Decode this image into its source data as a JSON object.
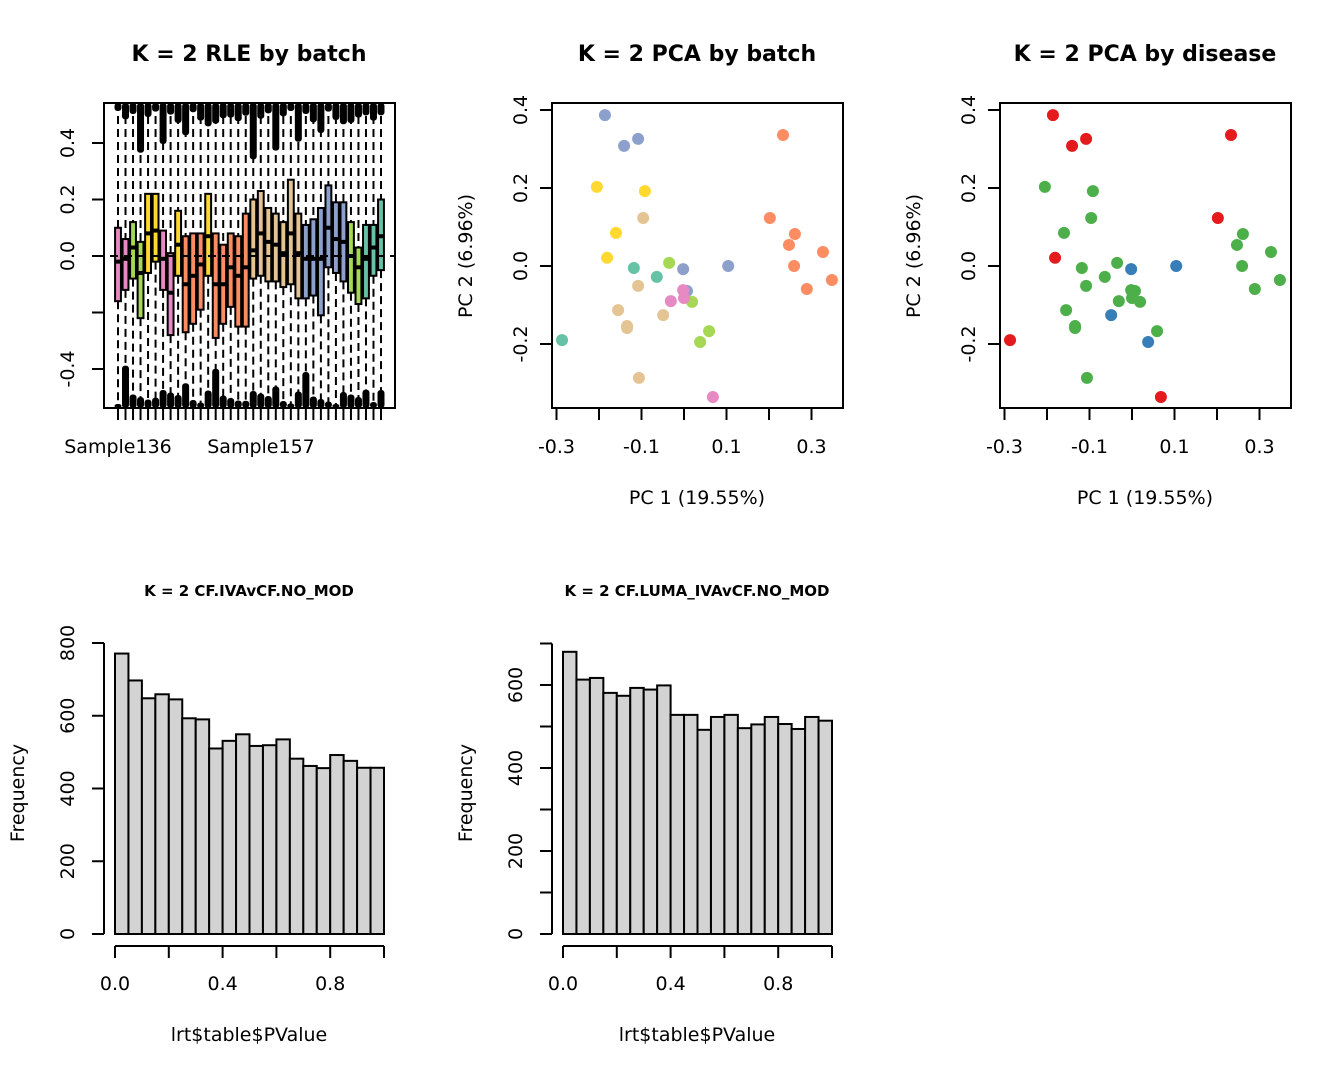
{
  "chart_data": [
    {
      "id": "rle",
      "type": "boxplot",
      "title": "K = 2 RLE by batch",
      "xlabel": "",
      "ylabel": "",
      "ylim": [
        -0.53,
        0.53
      ],
      "yticks": [
        -0.4,
        -0.2,
        0.0,
        0.2,
        0.4
      ],
      "ytick_labels": [
        "-0.4",
        "",
        "0.0",
        "0.2",
        "0.4"
      ],
      "xtick_labels_shown": [
        "Sample136",
        "Sample157"
      ],
      "reference_line": 0,
      "colors": {
        "pink": "#E78AC3",
        "green": "#A6D854",
        "yellow": "#FFD92F",
        "orange": "#FC8D62",
        "tan": "#E5C494",
        "blue": "#8DA0CB",
        "teal": "#66C2A5"
      },
      "boxes": [
        {
          "color": "pink",
          "q1": -0.16,
          "median": -0.02,
          "q3": 0.1
        },
        {
          "color": "pink",
          "q1": -0.12,
          "median": -0.01,
          "q3": 0.06
        },
        {
          "color": "green",
          "q1": -0.08,
          "median": 0.03,
          "q3": 0.12
        },
        {
          "color": "green",
          "q1": -0.22,
          "median": -0.06,
          "q3": 0.05
        },
        {
          "color": "yellow",
          "q1": -0.06,
          "median": 0.08,
          "q3": 0.22
        },
        {
          "color": "yellow",
          "q1": -0.02,
          "median": 0.09,
          "q3": 0.22
        },
        {
          "color": "pink",
          "q1": -0.12,
          "median": -0.01,
          "q3": 0.09
        },
        {
          "color": "pink",
          "q1": -0.28,
          "median": -0.13,
          "q3": 0.01
        },
        {
          "color": "yellow",
          "q1": -0.07,
          "median": 0.04,
          "q3": 0.16
        },
        {
          "color": "orange",
          "q1": -0.27,
          "median": -0.1,
          "q3": 0.07
        },
        {
          "color": "orange",
          "q1": -0.24,
          "median": -0.07,
          "q3": 0.08
        },
        {
          "color": "orange",
          "q1": -0.19,
          "median": -0.03,
          "q3": 0.08
        },
        {
          "color": "yellow",
          "q1": -0.07,
          "median": 0.07,
          "q3": 0.22
        },
        {
          "color": "orange",
          "q1": -0.29,
          "median": -0.1,
          "q3": 0.08
        },
        {
          "color": "orange",
          "q1": -0.24,
          "median": -0.1,
          "q3": 0.04
        },
        {
          "color": "orange",
          "q1": -0.18,
          "median": -0.04,
          "q3": 0.08
        },
        {
          "color": "orange",
          "q1": -0.25,
          "median": -0.07,
          "q3": 0.07
        },
        {
          "color": "orange",
          "q1": -0.25,
          "median": -0.04,
          "q3": 0.15
        },
        {
          "color": "tan",
          "q1": -0.08,
          "median": 0.02,
          "q3": 0.2
        },
        {
          "color": "tan",
          "q1": -0.07,
          "median": 0.08,
          "q3": 0.23
        },
        {
          "color": "tan",
          "q1": -0.09,
          "median": 0.05,
          "q3": 0.17
        },
        {
          "color": "tan",
          "q1": -0.09,
          "median": 0.04,
          "q3": 0.15
        },
        {
          "color": "tan",
          "q1": -0.11,
          "median": 0.01,
          "q3": 0.12
        },
        {
          "color": "tan",
          "q1": -0.1,
          "median": 0.08,
          "q3": 0.27
        },
        {
          "color": "tan",
          "q1": -0.15,
          "median": 0.01,
          "q3": 0.15
        },
        {
          "color": "blue",
          "q1": -0.15,
          "median": -0.01,
          "q3": 0.11
        },
        {
          "color": "blue",
          "q1": -0.14,
          "median": -0.01,
          "q3": 0.13
        },
        {
          "color": "blue",
          "q1": -0.21,
          "median": -0.01,
          "q3": 0.17
        },
        {
          "color": "blue",
          "q1": -0.04,
          "median": 0.1,
          "q3": 0.25
        },
        {
          "color": "blue",
          "q1": -0.06,
          "median": 0.06,
          "q3": 0.19
        },
        {
          "color": "blue",
          "q1": -0.09,
          "median": 0.05,
          "q3": 0.19
        },
        {
          "color": "green",
          "q1": -0.13,
          "median": 0.0,
          "q3": 0.12
        },
        {
          "color": "green",
          "q1": -0.17,
          "median": -0.04,
          "q3": 0.03
        },
        {
          "color": "teal",
          "q1": -0.15,
          "median": -0.01,
          "q3": 0.11
        },
        {
          "color": "teal",
          "q1": -0.07,
          "median": 0.03,
          "q3": 0.11
        },
        {
          "color": "teal",
          "q1": -0.05,
          "median": 0.07,
          "q3": 0.2
        }
      ]
    },
    {
      "id": "pca-batch",
      "type": "scatter",
      "title": "K = 2 PCA by batch",
      "xlabel": "PC 1 (19.55%)",
      "ylabel": "PC 2 (6.96%)",
      "xlim": [
        -0.31,
        0.37
      ],
      "ylim": [
        -0.36,
        0.41
      ],
      "xticks": [
        -0.3,
        -0.2,
        -0.1,
        0.0,
        0.1,
        0.2,
        0.3
      ],
      "xtick_labels": [
        "-0.3",
        "",
        "-0.1",
        "",
        "0.1",
        "",
        "0.3"
      ],
      "yticks": [
        -0.2,
        0.0,
        0.2,
        0.4
      ],
      "ytick_labels": [
        "-0.2",
        "0.0",
        "0.2",
        "0.4"
      ],
      "colors": {
        "pink": "#E78AC3",
        "green": "#A6D854",
        "yellow": "#FFD92F",
        "orange": "#FC8D62",
        "tan": "#E5C494",
        "blue": "#8DA0CB",
        "teal": "#66C2A5"
      },
      "points": [
        {
          "x": -0.186,
          "y": 0.387,
          "group": "blue"
        },
        {
          "x": -0.141,
          "y": 0.308,
          "group": "blue"
        },
        {
          "x": -0.108,
          "y": 0.326,
          "group": "blue"
        },
        {
          "x": -0.002,
          "y": -0.008,
          "group": "blue"
        },
        {
          "x": 0.104,
          "y": 0.0,
          "group": "blue"
        },
        {
          "x": 0.007,
          "y": -0.064,
          "group": "blue"
        },
        {
          "x": -0.205,
          "y": 0.203,
          "group": "yellow"
        },
        {
          "x": -0.092,
          "y": 0.192,
          "group": "yellow"
        },
        {
          "x": -0.16,
          "y": 0.085,
          "group": "yellow"
        },
        {
          "x": -0.181,
          "y": 0.021,
          "group": "yellow"
        },
        {
          "x": -0.096,
          "y": 0.123,
          "group": "tan"
        },
        {
          "x": -0.108,
          "y": -0.051,
          "group": "tan"
        },
        {
          "x": -0.155,
          "y": -0.113,
          "group": "tan"
        },
        {
          "x": -0.049,
          "y": -0.126,
          "group": "tan"
        },
        {
          "x": -0.134,
          "y": -0.154,
          "group": "tan"
        },
        {
          "x": -0.134,
          "y": -0.159,
          "group": "tan"
        },
        {
          "x": -0.106,
          "y": -0.287,
          "group": "tan"
        },
        {
          "x": -0.118,
          "y": -0.005,
          "group": "teal"
        },
        {
          "x": -0.064,
          "y": -0.028,
          "group": "teal"
        },
        {
          "x": -0.287,
          "y": -0.19,
          "group": "teal"
        },
        {
          "x": -0.035,
          "y": 0.008,
          "group": "green"
        },
        {
          "x": 0.019,
          "y": -0.092,
          "group": "green"
        },
        {
          "x": 0.059,
          "y": -0.167,
          "group": "green"
        },
        {
          "x": 0.038,
          "y": -0.195,
          "group": "green"
        },
        {
          "x": -0.002,
          "y": -0.062,
          "group": "pink"
        },
        {
          "x": 0.0,
          "y": -0.082,
          "group": "pink"
        },
        {
          "x": -0.031,
          "y": -0.09,
          "group": "pink"
        },
        {
          "x": 0.068,
          "y": -0.336,
          "group": "pink"
        },
        {
          "x": 0.233,
          "y": 0.336,
          "group": "orange"
        },
        {
          "x": 0.202,
          "y": 0.123,
          "group": "orange"
        },
        {
          "x": 0.261,
          "y": 0.082,
          "group": "orange"
        },
        {
          "x": 0.247,
          "y": 0.054,
          "group": "orange"
        },
        {
          "x": 0.327,
          "y": 0.036,
          "group": "orange"
        },
        {
          "x": 0.259,
          "y": 0.0,
          "group": "orange"
        },
        {
          "x": 0.348,
          "y": -0.036,
          "group": "orange"
        },
        {
          "x": 0.289,
          "y": -0.059,
          "group": "orange"
        }
      ]
    },
    {
      "id": "pca-disease",
      "type": "scatter",
      "title": "K = 2 PCA by disease",
      "xlabel": "PC 1 (19.55%)",
      "ylabel": "PC 2 (6.96%)",
      "xlim": [
        -0.31,
        0.37
      ],
      "ylim": [
        -0.36,
        0.41
      ],
      "xticks": [
        -0.3,
        -0.2,
        -0.1,
        0.0,
        0.1,
        0.2,
        0.3
      ],
      "xtick_labels": [
        "-0.3",
        "",
        "-0.1",
        "",
        "0.1",
        "",
        "0.3"
      ],
      "yticks": [
        -0.2,
        0.0,
        0.2,
        0.4
      ],
      "ytick_labels": [
        "-0.2",
        "0.0",
        "0.2",
        "0.4"
      ],
      "colors": {
        "red": "#E41A1C",
        "blue": "#377EB8",
        "green": "#4DAF4A"
      },
      "points": [
        {
          "x": -0.186,
          "y": 0.387,
          "group": "red"
        },
        {
          "x": -0.141,
          "y": 0.308,
          "group": "red"
        },
        {
          "x": -0.108,
          "y": 0.326,
          "group": "red"
        },
        {
          "x": -0.002,
          "y": -0.008,
          "group": "blue"
        },
        {
          "x": 0.104,
          "y": 0.0,
          "group": "blue"
        },
        {
          "x": 0.007,
          "y": -0.064,
          "group": "green"
        },
        {
          "x": -0.205,
          "y": 0.203,
          "group": "green"
        },
        {
          "x": -0.092,
          "y": 0.192,
          "group": "green"
        },
        {
          "x": -0.16,
          "y": 0.085,
          "group": "green"
        },
        {
          "x": -0.181,
          "y": 0.021,
          "group": "red"
        },
        {
          "x": -0.096,
          "y": 0.123,
          "group": "green"
        },
        {
          "x": -0.108,
          "y": -0.051,
          "group": "green"
        },
        {
          "x": -0.155,
          "y": -0.113,
          "group": "green"
        },
        {
          "x": -0.049,
          "y": -0.126,
          "group": "blue"
        },
        {
          "x": -0.134,
          "y": -0.154,
          "group": "green"
        },
        {
          "x": -0.134,
          "y": -0.159,
          "group": "green"
        },
        {
          "x": -0.106,
          "y": -0.287,
          "group": "green"
        },
        {
          "x": -0.118,
          "y": -0.005,
          "group": "green"
        },
        {
          "x": -0.064,
          "y": -0.028,
          "group": "green"
        },
        {
          "x": -0.287,
          "y": -0.19,
          "group": "red"
        },
        {
          "x": -0.035,
          "y": 0.008,
          "group": "green"
        },
        {
          "x": 0.019,
          "y": -0.092,
          "group": "green"
        },
        {
          "x": 0.059,
          "y": -0.167,
          "group": "green"
        },
        {
          "x": 0.038,
          "y": -0.195,
          "group": "blue"
        },
        {
          "x": -0.002,
          "y": -0.062,
          "group": "green"
        },
        {
          "x": 0.0,
          "y": -0.082,
          "group": "green"
        },
        {
          "x": -0.031,
          "y": -0.09,
          "group": "green"
        },
        {
          "x": 0.068,
          "y": -0.336,
          "group": "red"
        },
        {
          "x": 0.233,
          "y": 0.336,
          "group": "red"
        },
        {
          "x": 0.202,
          "y": 0.123,
          "group": "red"
        },
        {
          "x": 0.261,
          "y": 0.082,
          "group": "green"
        },
        {
          "x": 0.247,
          "y": 0.054,
          "group": "green"
        },
        {
          "x": 0.327,
          "y": 0.036,
          "group": "green"
        },
        {
          "x": 0.259,
          "y": 0.0,
          "group": "green"
        },
        {
          "x": 0.348,
          "y": -0.036,
          "group": "green"
        },
        {
          "x": 0.289,
          "y": -0.059,
          "group": "green"
        }
      ]
    },
    {
      "id": "hist-iva",
      "type": "bar",
      "title": "K = 2 CF.IVAvCF.NO_MOD",
      "xlabel": "lrt$table$PValue",
      "ylabel": "Frequency",
      "xlim": [
        0,
        1
      ],
      "ylim": [
        0,
        800
      ],
      "bin_width": 0.05,
      "xticks": [
        0,
        0.2,
        0.4,
        0.6,
        0.8,
        1.0
      ],
      "xtick_labels": [
        "0.0",
        "",
        "0.4",
        "",
        "0.8",
        ""
      ],
      "yticks": [
        0,
        200,
        400,
        600,
        800
      ],
      "ytick_labels": [
        "0",
        "200",
        "400",
        "600",
        "800"
      ],
      "fill": "#D3D3D3",
      "values": [
        771,
        697,
        648,
        659,
        645,
        593,
        590,
        510,
        531,
        549,
        517,
        519,
        535,
        482,
        462,
        456,
        492,
        476,
        457,
        457
      ]
    },
    {
      "id": "hist-luma",
      "type": "bar",
      "title": "K = 2 CF.LUMA_IVAvCF.NO_MOD",
      "xlabel": "lrt$table$PValue",
      "ylabel": "Frequency",
      "xlim": [
        0,
        1
      ],
      "ylim": [
        0,
        700
      ],
      "bin_width": 0.05,
      "xticks": [
        0,
        0.2,
        0.4,
        0.6,
        0.8,
        1.0
      ],
      "xtick_labels": [
        "0.0",
        "",
        "0.4",
        "",
        "0.8",
        ""
      ],
      "yticks": [
        0,
        100,
        200,
        300,
        400,
        500,
        600,
        700
      ],
      "ytick_labels": [
        "0",
        "",
        "200",
        "",
        "400",
        "",
        "600",
        ""
      ],
      "fill": "#D3D3D3",
      "values": [
        680,
        613,
        617,
        581,
        574,
        593,
        589,
        599,
        528,
        528,
        492,
        523,
        528,
        496,
        505,
        523,
        506,
        494,
        523,
        514
      ]
    }
  ]
}
